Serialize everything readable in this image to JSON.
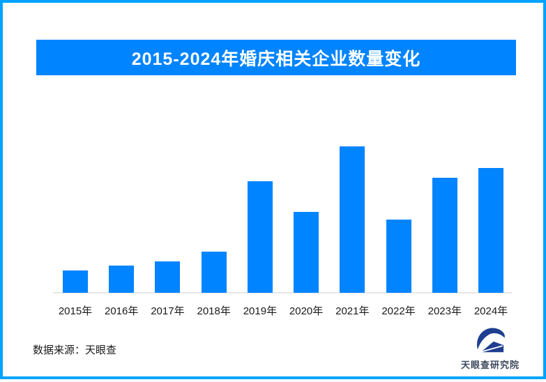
{
  "frame": {
    "border_color": "#00A3FF",
    "background_color": "#FFFFFF"
  },
  "banner": {
    "background_color": "#0084FF",
    "text_color": "#FFFFFF"
  },
  "chart_data": {
    "type": "bar",
    "title": "2015-2024年婚庆相关企业数量变化",
    "categories": [
      "2015年",
      "2016年",
      "2017年",
      "2018年",
      "2019年",
      "2020年",
      "2021年",
      "2022年",
      "2023年",
      "2024年"
    ],
    "values": [
      15,
      18.5,
      21.5,
      28,
      76,
      55,
      100,
      50,
      78.5,
      85
    ],
    "value_note": "No numeric y-axis shown in chart; values are relative bar heights as percent of the tallest bar (2021 = 100)",
    "bar_color": "#0084FF",
    "axis_line_color": "#E7E7E7",
    "xlabel": "",
    "ylabel": "",
    "grid": false,
    "legend": false,
    "ylim": [
      0,
      100
    ]
  },
  "footer": {
    "source_label": "数据来源：天眼查"
  },
  "logo": {
    "text": "天眼查研究院",
    "icon": "tianyancha-eye-logo",
    "icon_color": "#1E3E8F",
    "text_color": "#3E4A5E"
  }
}
